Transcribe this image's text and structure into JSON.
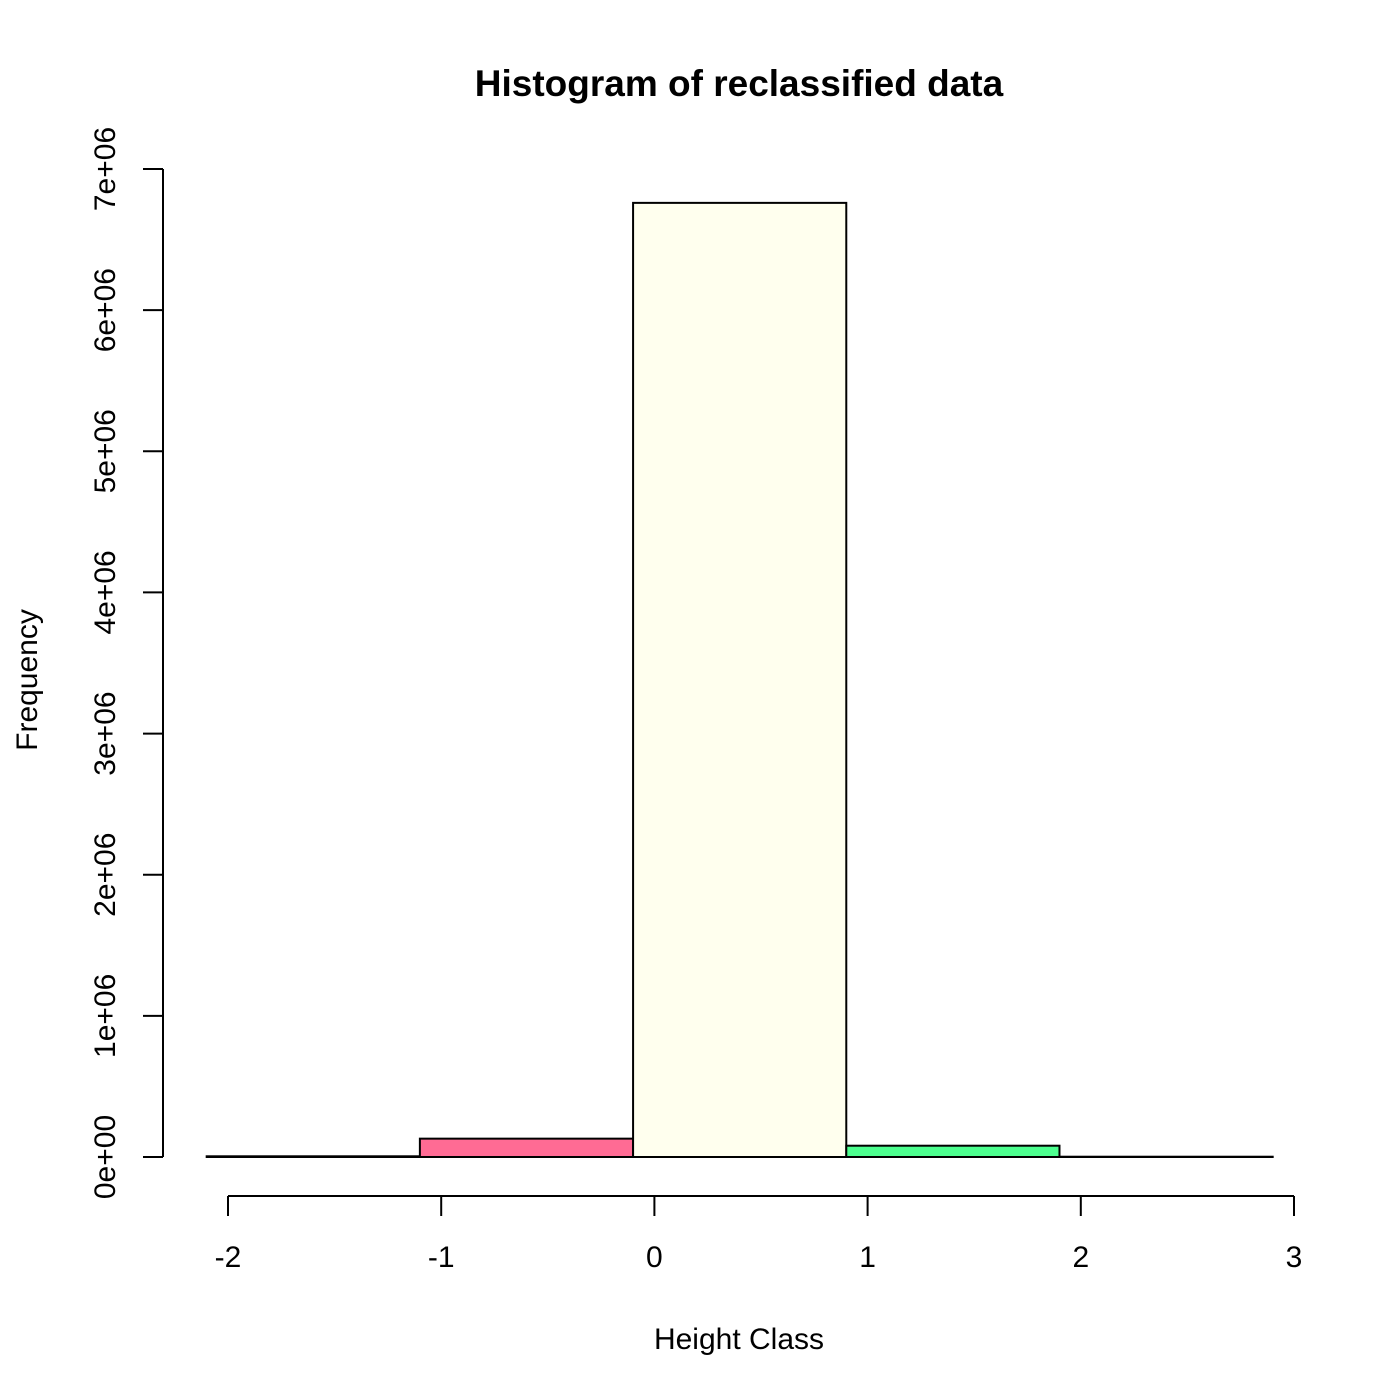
{
  "chart_data": {
    "type": "bar",
    "title": "Histogram of reclassified data",
    "xlabel": "Height Class",
    "ylabel": "Frequency",
    "xlim": [
      -2,
      3
    ],
    "ylim": [
      0,
      7000000
    ],
    "grid": false,
    "x_ticks": [
      "-2",
      "-1",
      "0",
      "1",
      "2",
      "3"
    ],
    "y_ticks": [
      "0e+00",
      "1e+06",
      "2e+06",
      "3e+06",
      "4e+06",
      "5e+06",
      "6e+06",
      "7e+06"
    ],
    "bins": [
      {
        "x_start": -2.1,
        "x_end": -1.1,
        "value": 5000,
        "color": "#ffffff"
      },
      {
        "x_start": -1.1,
        "x_end": -0.1,
        "value": 130000,
        "color": "#ff6b94"
      },
      {
        "x_start": -0.1,
        "x_end": 0.9,
        "value": 6760000,
        "color": "#ffffee"
      },
      {
        "x_start": 0.9,
        "x_end": 1.9,
        "value": 80000,
        "color": "#4dff8f"
      },
      {
        "x_start": 1.9,
        "x_end": 2.9,
        "value": 2000,
        "color": "#ffffff"
      }
    ]
  }
}
